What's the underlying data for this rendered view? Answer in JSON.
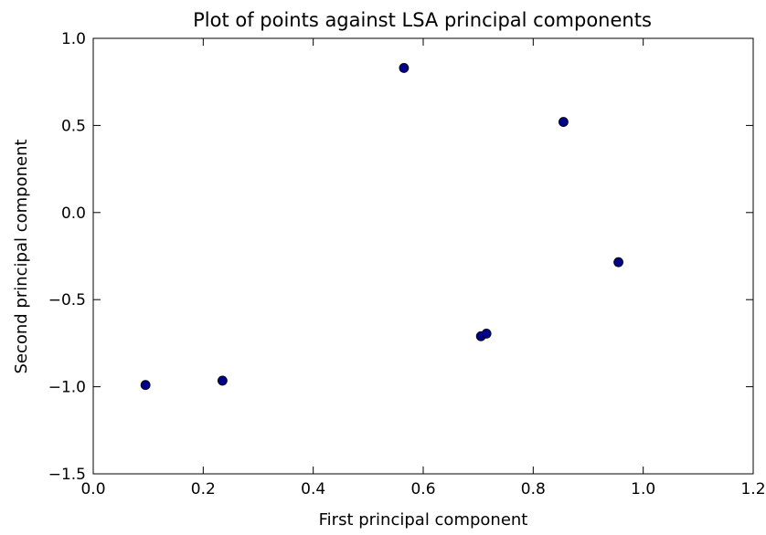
{
  "chart_data": {
    "type": "scatter",
    "title": "Plot of points against LSA principal components",
    "xlabel": "First principal component",
    "ylabel": "Second principal component",
    "xlim": [
      0.0,
      1.2
    ],
    "ylim": [
      -1.5,
      1.0
    ],
    "xticks": [
      "0.0",
      "0.2",
      "0.4",
      "0.6",
      "0.8",
      "1.0",
      "1.2"
    ],
    "yticks": [
      "1.0",
      "0.5",
      "0.0",
      "−0.5",
      "−1.0",
      "−1.5"
    ],
    "grid": false,
    "series": [
      {
        "color": "#00008b",
        "points": [
          {
            "x": 0.095,
            "y": -0.99
          },
          {
            "x": 0.235,
            "y": -0.965
          },
          {
            "x": 0.565,
            "y": 0.83
          },
          {
            "x": 0.705,
            "y": -0.71
          },
          {
            "x": 0.715,
            "y": -0.695
          },
          {
            "x": 0.855,
            "y": 0.52
          },
          {
            "x": 0.955,
            "y": -0.285
          }
        ]
      }
    ]
  }
}
